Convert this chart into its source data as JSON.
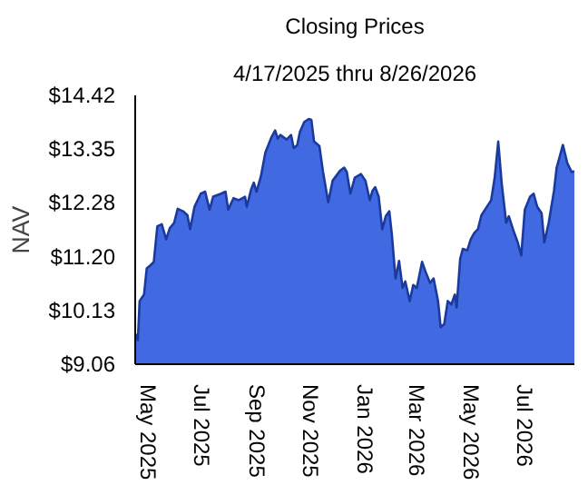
{
  "chart_data": {
    "type": "area",
    "title": "Closing Prices",
    "subtitle": "4/17/2025 thru 8/26/2026",
    "ylabel": "NAV",
    "xlim": [
      "2025-04-17",
      "2026-08-26"
    ],
    "xticks": [
      {
        "value": "2025-05-01",
        "label": "May 2025"
      },
      {
        "value": "2025-07-01",
        "label": "Jul 2025"
      },
      {
        "value": "2025-09-01",
        "label": "Sep 2025"
      },
      {
        "value": "2025-11-01",
        "label": "Nov 2025"
      },
      {
        "value": "2026-01-01",
        "label": "Jan 2026"
      },
      {
        "value": "2026-03-01",
        "label": "Mar 2026"
      },
      {
        "value": "2026-05-01",
        "label": "May 2026"
      },
      {
        "value": "2026-07-01",
        "label": "Jul 2026"
      }
    ],
    "ylim": [
      9.06,
      14.42
    ],
    "yticks": [
      {
        "value": 9.06,
        "label": "$9.06"
      },
      {
        "value": 10.13,
        "label": "$10.13"
      },
      {
        "value": 11.2,
        "label": "$11.20"
      },
      {
        "value": 12.28,
        "label": "$12.28"
      },
      {
        "value": 13.35,
        "label": "$13.35"
      },
      {
        "value": 14.42,
        "label": "$14.42"
      }
    ],
    "grid": false,
    "x": [
      "2025-04-17",
      "2025-04-20",
      "2025-04-22",
      "2025-04-27",
      "2025-04-30",
      "2025-05-04",
      "2025-05-08",
      "2025-05-12",
      "2025-05-17",
      "2025-05-22",
      "2025-05-26",
      "2025-05-31",
      "2025-06-04",
      "2025-06-10",
      "2025-06-15",
      "2025-06-18",
      "2025-06-23",
      "2025-06-30",
      "2025-07-05",
      "2025-07-10",
      "2025-07-14",
      "2025-07-23",
      "2025-07-28",
      "2025-07-31",
      "2025-08-06",
      "2025-08-12",
      "2025-08-19",
      "2025-08-21",
      "2025-08-26",
      "2025-08-29",
      "2025-09-01",
      "2025-09-06",
      "2025-09-11",
      "2025-09-18",
      "2025-09-22",
      "2025-09-25",
      "2025-09-28",
      "2025-10-05",
      "2025-10-10",
      "2025-10-13",
      "2025-10-17",
      "2025-10-20",
      "2025-10-25",
      "2025-10-30",
      "2025-11-02",
      "2025-11-05",
      "2025-11-11",
      "2025-11-15",
      "2025-11-21",
      "2025-11-26",
      "2025-12-04",
      "2025-12-09",
      "2025-12-12",
      "2025-12-16",
      "2025-12-21",
      "2025-12-28",
      "2026-01-02",
      "2026-01-07",
      "2026-01-10",
      "2026-01-13",
      "2026-01-17",
      "2026-01-21",
      "2026-01-25",
      "2026-01-29",
      "2026-02-01",
      "2026-02-05",
      "2026-02-09",
      "2026-02-13",
      "2026-02-16",
      "2026-02-21",
      "2026-02-25",
      "2026-03-01",
      "2026-03-07",
      "2026-03-11",
      "2026-03-16",
      "2026-03-20",
      "2026-03-25",
      "2026-03-28",
      "2026-04-01",
      "2026-04-05",
      "2026-04-09",
      "2026-04-13",
      "2026-04-15",
      "2026-04-19",
      "2026-04-22",
      "2026-04-27",
      "2026-05-01",
      "2026-05-05",
      "2026-05-09",
      "2026-05-13",
      "2026-05-17",
      "2026-05-24",
      "2026-05-28",
      "2026-06-01",
      "2026-06-05",
      "2026-06-10",
      "2026-06-13",
      "2026-06-19",
      "2026-06-23",
      "2026-06-27",
      "2026-07-01",
      "2026-07-07",
      "2026-07-11",
      "2026-07-15",
      "2026-07-20",
      "2026-07-23",
      "2026-07-28",
      "2026-08-03",
      "2026-08-06",
      "2026-08-13",
      "2026-08-18",
      "2026-08-23",
      "2026-08-26"
    ],
    "series": [
      {
        "color": "#4169e1",
        "values": [
          9.67,
          9.54,
          10.32,
          10.45,
          10.97,
          11.03,
          11.1,
          11.81,
          11.85,
          11.55,
          11.77,
          11.88,
          12.16,
          12.11,
          12.03,
          11.75,
          12.2,
          12.46,
          12.5,
          12.14,
          12.4,
          12.46,
          12.5,
          12.14,
          12.37,
          12.33,
          12.4,
          12.2,
          12.55,
          12.68,
          12.5,
          12.81,
          13.28,
          13.59,
          13.72,
          13.56,
          13.63,
          13.54,
          13.63,
          13.37,
          13.43,
          13.69,
          13.89,
          13.95,
          13.93,
          13.5,
          13.41,
          12.91,
          12.29,
          12.72,
          12.91,
          12.98,
          12.89,
          12.46,
          12.78,
          12.85,
          12.72,
          12.33,
          12.52,
          12.59,
          12.4,
          11.75,
          12.01,
          12.11,
          11.62,
          10.77,
          11.12,
          10.58,
          10.71,
          10.32,
          10.64,
          10.58,
          11.1,
          10.9,
          10.68,
          10.77,
          10.32,
          9.8,
          9.86,
          10.32,
          10.25,
          10.45,
          10.19,
          11.16,
          11.36,
          11.33,
          11.55,
          11.68,
          11.75,
          12.03,
          12.14,
          12.33,
          12.78,
          13.5,
          12.65,
          11.88,
          12.01,
          11.68,
          11.49,
          11.23,
          12.14,
          12.4,
          12.46,
          12.2,
          12.07,
          11.49,
          11.88,
          12.52,
          12.98,
          13.43,
          13.07,
          12.89,
          12.91
        ]
      }
    ]
  }
}
